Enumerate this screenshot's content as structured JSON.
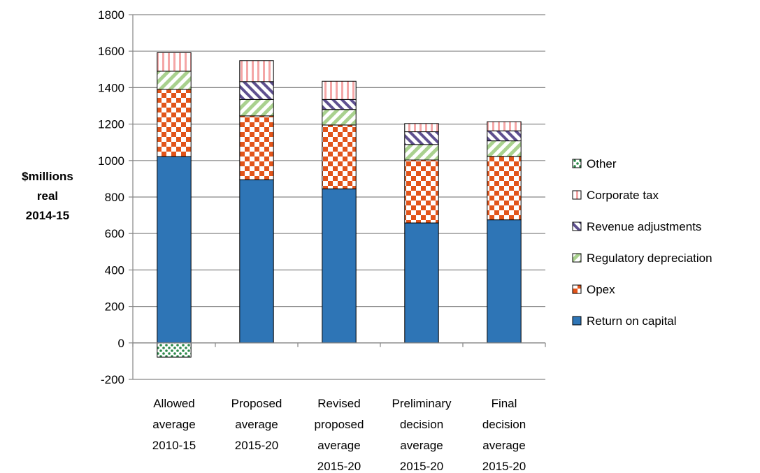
{
  "chart_data": {
    "type": "bar",
    "stacked": true,
    "ylabel": [
      "$millions",
      "real",
      "2014-15"
    ],
    "ylim": [
      -200,
      1800
    ],
    "ytick_step": 200,
    "grid": true,
    "legend_position": "right",
    "categories": [
      [
        "Allowed",
        "average",
        "2010-15"
      ],
      [
        "Proposed",
        "average",
        "2015-20"
      ],
      [
        "Revised",
        "proposed",
        "average",
        "2015-20"
      ],
      [
        "Preliminary",
        "decision",
        "average",
        "2015-20"
      ],
      [
        "Final",
        "decision",
        "average",
        "2015-20"
      ]
    ],
    "series": [
      {
        "name": "Return on capital",
        "pattern": "solid",
        "color": "#2e75b6",
        "values": [
          1022,
          895,
          845,
          658,
          675
        ]
      },
      {
        "name": "Opex",
        "pattern": "checker",
        "color": "#e2541a",
        "values": [
          368,
          350,
          350,
          345,
          348
        ]
      },
      {
        "name": "Regulatory depreciation",
        "pattern": "diagonal",
        "color": "#a9d18e",
        "values": [
          100,
          90,
          85,
          85,
          85
        ]
      },
      {
        "name": "Revenue adjustments",
        "pattern": "diagonal-dark",
        "color": "#5e4f8f",
        "values": [
          0,
          98,
          55,
          70,
          55
        ]
      },
      {
        "name": "Corporate tax",
        "pattern": "vertical",
        "color": "#f4a6a6",
        "values": [
          102,
          115,
          100,
          45,
          50
        ]
      },
      {
        "name": "Other",
        "pattern": "dots",
        "color": "#2d8a4a",
        "values": [
          -78,
          0,
          0,
          0,
          0
        ]
      }
    ],
    "legend_order": [
      "Other",
      "Corporate tax",
      "Revenue adjustments",
      "Regulatory depreciation",
      "Opex",
      "Return on capital"
    ]
  }
}
